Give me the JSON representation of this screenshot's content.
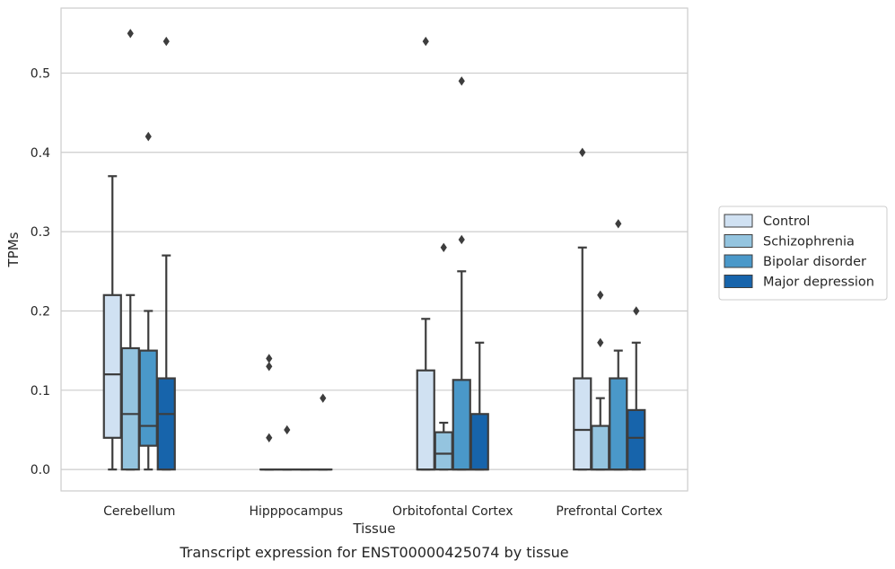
{
  "chart_data": {
    "type": "box",
    "title": "",
    "caption": "Transcript expression for ENST00000425074 by tissue",
    "xlabel": "Tissue",
    "ylabel": "TPMs",
    "ylim": [
      -0.027,
      0.582
    ],
    "yticks": [
      0.0,
      0.1,
      0.2,
      0.3,
      0.4,
      0.5
    ],
    "ytick_labels": [
      "0.0",
      "0.1",
      "0.2",
      "0.3",
      "0.4",
      "0.5"
    ],
    "grid": "horizontal",
    "legend_position": "right",
    "categories": [
      "Cerebellum",
      "Hipppocampus",
      "Orbitofontal Cortex",
      "Prefrontal Cortex"
    ],
    "series": [
      {
        "name": "Control",
        "color": "#d0e1f2",
        "boxes": [
          {
            "whislo": 0.0,
            "q1": 0.04,
            "med": 0.12,
            "q3": 0.22,
            "whishi": 0.37,
            "fliers": []
          },
          {
            "whislo": 0.0,
            "q1": 0.0,
            "med": 0.0,
            "q3": 0.0,
            "whishi": 0.0,
            "fliers": [
              0.04,
              0.13,
              0.14
            ]
          },
          {
            "whislo": 0.0,
            "q1": 0.0,
            "med": 0.0,
            "q3": 0.125,
            "whishi": 0.19,
            "fliers": [
              0.54
            ]
          },
          {
            "whislo": 0.0,
            "q1": 0.0,
            "med": 0.05,
            "q3": 0.115,
            "whishi": 0.28,
            "fliers": [
              0.4
            ]
          }
        ]
      },
      {
        "name": "Schizophrenia",
        "color": "#94c4df",
        "boxes": [
          {
            "whislo": 0.0,
            "q1": 0.0,
            "med": 0.07,
            "q3": 0.153,
            "whishi": 0.22,
            "fliers": [
              0.55
            ]
          },
          {
            "whislo": 0.0,
            "q1": 0.0,
            "med": 0.0,
            "q3": 0.0,
            "whishi": 0.0,
            "fliers": [
              0.05
            ]
          },
          {
            "whislo": 0.0,
            "q1": 0.0,
            "med": 0.02,
            "q3": 0.047,
            "whishi": 0.059,
            "fliers": [
              0.28
            ]
          },
          {
            "whislo": 0.0,
            "q1": 0.0,
            "med": 0.0,
            "q3": 0.055,
            "whishi": 0.09,
            "fliers": [
              0.16,
              0.22
            ]
          }
        ]
      },
      {
        "name": "Bipolar disorder",
        "color": "#4a98c9",
        "boxes": [
          {
            "whislo": 0.0,
            "q1": 0.03,
            "med": 0.055,
            "q3": 0.15,
            "whishi": 0.2,
            "fliers": [
              0.42
            ]
          },
          {
            "whislo": 0.0,
            "q1": 0.0,
            "med": 0.0,
            "q3": 0.0,
            "whishi": 0.0,
            "fliers": []
          },
          {
            "whislo": 0.0,
            "q1": 0.0,
            "med": 0.0,
            "q3": 0.113,
            "whishi": 0.25,
            "fliers": [
              0.29,
              0.49
            ]
          },
          {
            "whislo": 0.0,
            "q1": 0.0,
            "med": 0.0,
            "q3": 0.115,
            "whishi": 0.15,
            "fliers": [
              0.31
            ]
          }
        ]
      },
      {
        "name": "Major depression",
        "color": "#1764ab",
        "boxes": [
          {
            "whislo": 0.0,
            "q1": 0.0,
            "med": 0.07,
            "q3": 0.115,
            "whishi": 0.27,
            "fliers": [
              0.54
            ]
          },
          {
            "whislo": 0.0,
            "q1": 0.0,
            "med": 0.0,
            "q3": 0.0,
            "whishi": 0.0,
            "fliers": [
              0.09
            ]
          },
          {
            "whislo": 0.0,
            "q1": 0.0,
            "med": 0.0,
            "q3": 0.07,
            "whishi": 0.16,
            "fliers": []
          },
          {
            "whislo": 0.0,
            "q1": 0.0,
            "med": 0.04,
            "q3": 0.075,
            "whishi": 0.16,
            "fliers": [
              0.2
            ]
          }
        ]
      }
    ]
  }
}
